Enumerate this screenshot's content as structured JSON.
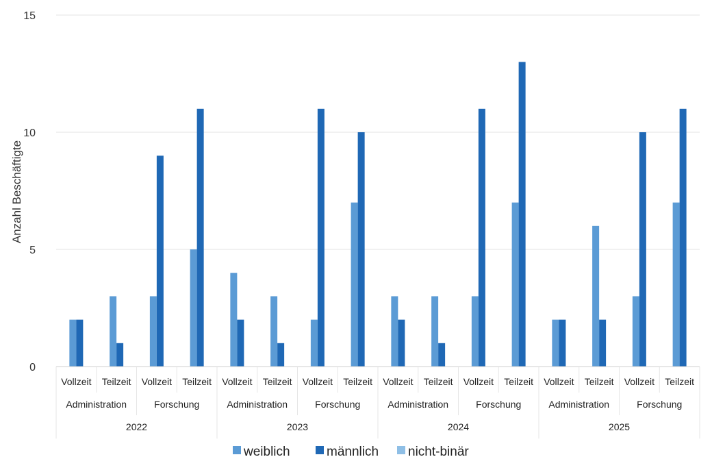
{
  "chart_data": {
    "type": "bar",
    "ylabel": "Anzahl Beschäftigte",
    "ylim": [
      0,
      15
    ],
    "yticks": [
      "0",
      "5",
      "10",
      "15"
    ],
    "grid": true,
    "legend_position": "bottom",
    "years": [
      "2022",
      "2023",
      "2024",
      "2025"
    ],
    "groups": [
      "Administration",
      "Forschung"
    ],
    "subgroups": [
      "Vollzeit",
      "Teilzeit"
    ],
    "categories": [
      "2022 Administration Vollzeit",
      "2022 Administration Teilzeit",
      "2022 Forschung Vollzeit",
      "2022 Forschung Teilzeit",
      "2023 Administration Vollzeit",
      "2023 Administration Teilzeit",
      "2023 Forschung Vollzeit",
      "2023 Forschung Teilzeit",
      "2024 Administration Vollzeit",
      "2024 Administration Teilzeit",
      "2024 Forschung Vollzeit",
      "2024 Forschung Teilzeit",
      "2025 Administration Vollzeit",
      "2025 Administration Teilzeit",
      "2025 Forschung Vollzeit",
      "2025 Forschung Teilzeit"
    ],
    "series": [
      {
        "name": "weiblich",
        "color": "#5b9bd5",
        "values": [
          2,
          3,
          3,
          5,
          4,
          3,
          2,
          7,
          3,
          3,
          3,
          7,
          2,
          6,
          3,
          7
        ]
      },
      {
        "name": "männlich",
        "color": "#1f68b5",
        "values": [
          2,
          1,
          9,
          11,
          2,
          1,
          11,
          10,
          2,
          1,
          11,
          13,
          2,
          2,
          10,
          11
        ]
      },
      {
        "name": "nicht-binär",
        "color": "#8fbfe6",
        "values": [
          0,
          0,
          0,
          0,
          0,
          0,
          0,
          0,
          0,
          0,
          0,
          0,
          0,
          0,
          0,
          0
        ]
      }
    ]
  }
}
